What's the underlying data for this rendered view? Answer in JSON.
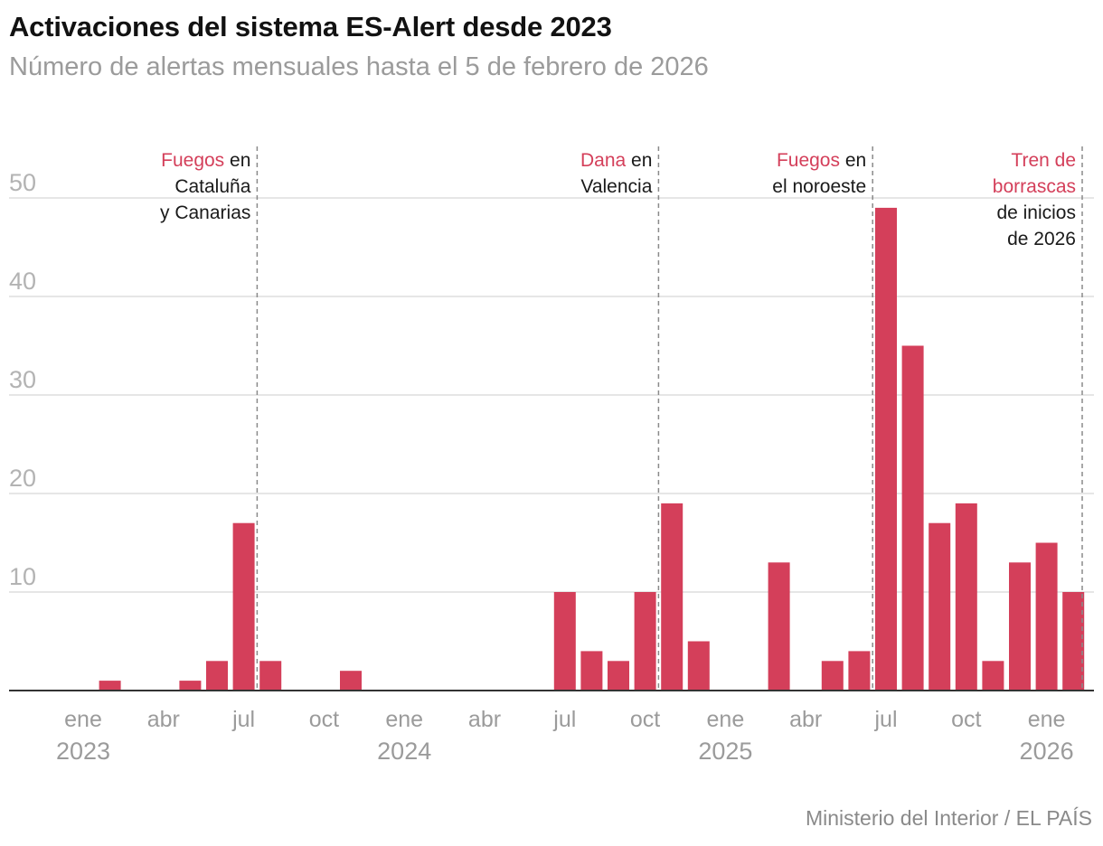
{
  "title": "Activaciones del sistema ES-Alert desde 2023",
  "subtitle": "Número de alertas mensuales hasta el 5 de febrero de 2026",
  "source": "Ministerio del Interior / EL PAÍS",
  "colors": {
    "bar": "#d43f5a",
    "highlight": "#d43f5a",
    "grid": "#dddddd",
    "baseline": "#333333",
    "marker": "#8a8a8a"
  },
  "chart_data": {
    "type": "bar",
    "title": "Activaciones del sistema ES-Alert desde 2023",
    "subtitle": "Número de alertas mensuales hasta el 5 de febrero de 2026",
    "xlabel": "",
    "ylabel": "",
    "ylim": [
      0,
      50
    ],
    "yticks": [
      10,
      20,
      30,
      40,
      50
    ],
    "grid": true,
    "categories": [
      "2023-01",
      "2023-02",
      "2023-03",
      "2023-04",
      "2023-05",
      "2023-06",
      "2023-07",
      "2023-08",
      "2023-09",
      "2023-10",
      "2023-11",
      "2023-12",
      "2024-01",
      "2024-02",
      "2024-03",
      "2024-04",
      "2024-05",
      "2024-06",
      "2024-07",
      "2024-08",
      "2024-09",
      "2024-10",
      "2024-11",
      "2024-12",
      "2025-01",
      "2025-02",
      "2025-03",
      "2025-04",
      "2025-05",
      "2025-06",
      "2025-07",
      "2025-08",
      "2025-09",
      "2025-10",
      "2025-11",
      "2025-12",
      "2026-01",
      "2026-02"
    ],
    "values": [
      0,
      1,
      0,
      0,
      1,
      3,
      17,
      3,
      0,
      0,
      2,
      0,
      0,
      0,
      0,
      0,
      0,
      0,
      10,
      4,
      3,
      10,
      19,
      5,
      0,
      0,
      13,
      0,
      3,
      4,
      49,
      35,
      17,
      19,
      3,
      13,
      15,
      10
    ],
    "x_tick_labels": [
      {
        "month": "2023-01",
        "label": "ene",
        "year": "2023"
      },
      {
        "month": "2023-04",
        "label": "abr",
        "year": ""
      },
      {
        "month": "2023-07",
        "label": "jul",
        "year": ""
      },
      {
        "month": "2023-10",
        "label": "oct",
        "year": ""
      },
      {
        "month": "2024-01",
        "label": "ene",
        "year": "2024"
      },
      {
        "month": "2024-04",
        "label": "abr",
        "year": ""
      },
      {
        "month": "2024-07",
        "label": "jul",
        "year": ""
      },
      {
        "month": "2024-10",
        "label": "oct",
        "year": ""
      },
      {
        "month": "2025-01",
        "label": "ene",
        "year": "2025"
      },
      {
        "month": "2025-04",
        "label": "abr",
        "year": ""
      },
      {
        "month": "2025-07",
        "label": "jul",
        "year": ""
      },
      {
        "month": "2025-10",
        "label": "oct",
        "year": ""
      },
      {
        "month": "2026-01",
        "label": "ene",
        "year": "2026"
      }
    ],
    "annotations": [
      {
        "marker_month": "2023-08",
        "lines": [
          [
            {
              "t": "Fuegos",
              "hl": true
            },
            {
              "t": " en",
              "hl": false
            }
          ],
          [
            {
              "t": "Cataluña",
              "hl": false
            }
          ],
          [
            {
              "t": "y Canarias",
              "hl": false
            }
          ]
        ]
      },
      {
        "marker_month": "2024-11",
        "lines": [
          [
            {
              "t": "Dana",
              "hl": true
            },
            {
              "t": " en",
              "hl": false
            }
          ],
          [
            {
              "t": "Valencia",
              "hl": false
            }
          ]
        ]
      },
      {
        "marker_month": "2025-07",
        "lines": [
          [
            {
              "t": "Fuegos",
              "hl": true
            },
            {
              "t": " en",
              "hl": false
            }
          ],
          [
            {
              "t": "el noroeste",
              "hl": false
            }
          ]
        ]
      },
      {
        "marker_month": "2026-03",
        "lines": [
          [
            {
              "t": "Tren de",
              "hl": true
            }
          ],
          [
            {
              "t": "borrascas",
              "hl": true
            }
          ],
          [
            {
              "t": "de inicios",
              "hl": false
            }
          ],
          [
            {
              "t": "de 2026",
              "hl": false
            }
          ]
        ]
      }
    ]
  }
}
